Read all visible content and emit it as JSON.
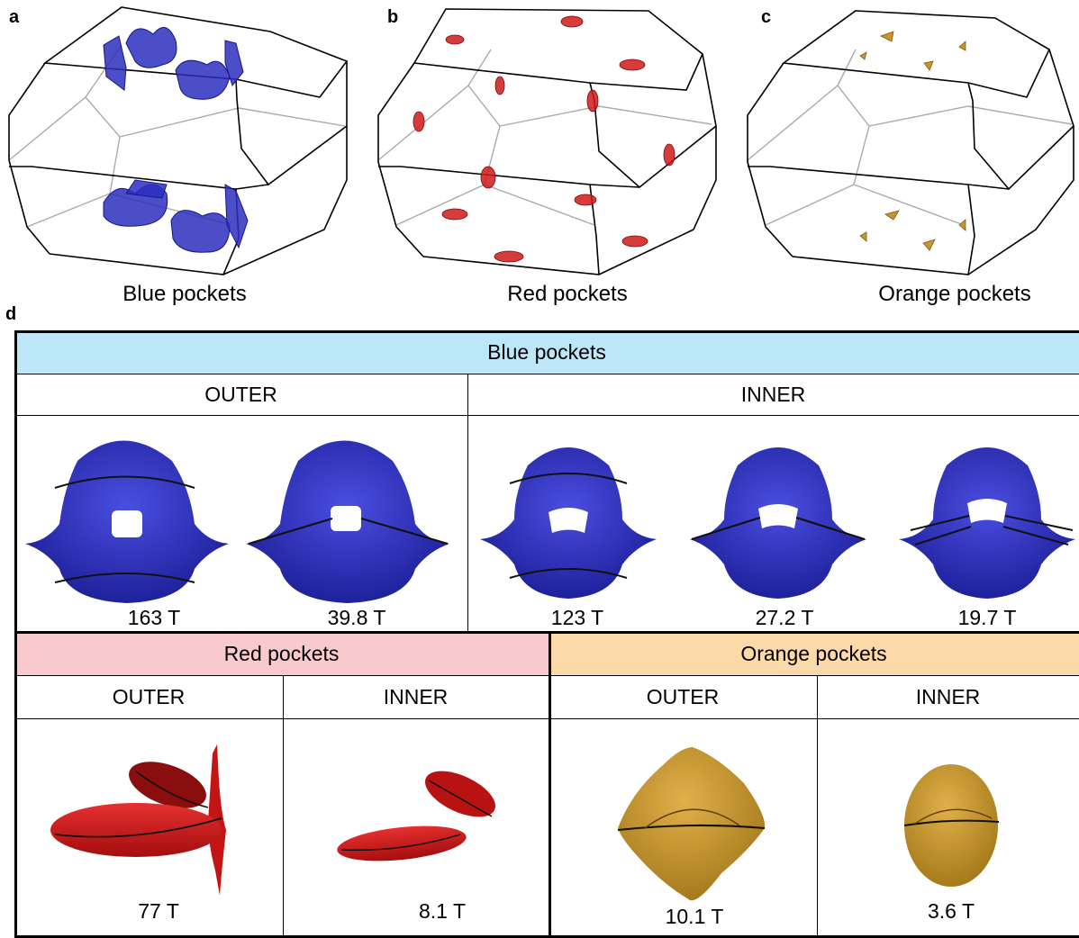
{
  "panels": {
    "a": {
      "letter": "a",
      "caption": "Blue pockets"
    },
    "b": {
      "letter": "b",
      "caption": "Red pockets"
    },
    "c": {
      "letter": "c",
      "caption": "Orange pockets"
    },
    "d": {
      "letter": "d"
    }
  },
  "colors": {
    "blue_header": "#bde6f8",
    "red_header": "#f9cacd",
    "orange_header": "#fbd9a8",
    "blue_pocket": "#2b2fbd",
    "red_pocket": "#d01a1a",
    "orange_pocket": "#c9962e"
  },
  "table": {
    "blue": {
      "header": "Blue pockets",
      "outer_label": "OUTER",
      "inner_label": "INNER",
      "outer_values": [
        "163 T",
        "39.8 T"
      ],
      "inner_values": [
        "123 T",
        "27.2 T",
        "19.7 T"
      ]
    },
    "red": {
      "header": "Red pockets",
      "outer_label": "OUTER",
      "inner_label": "INNER",
      "outer_value": "77 T",
      "inner_value": "8.1 T"
    },
    "orange": {
      "header": "Orange pockets",
      "outer_label": "OUTER",
      "inner_label": "INNER",
      "outer_value": "10.1 T",
      "inner_value": "3.6 T"
    }
  }
}
